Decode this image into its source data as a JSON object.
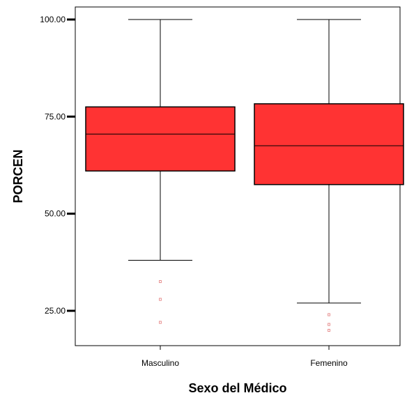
{
  "chart_data": {
    "type": "boxplot",
    "xlabel": "Sexo del Médico",
    "ylabel": "PORCEN",
    "ylim": [
      15,
      102
    ],
    "yticks": [
      {
        "value": 25,
        "label": "25.00"
      },
      {
        "value": 50,
        "label": "50.00"
      },
      {
        "value": 75,
        "label": "75.00"
      },
      {
        "value": 100,
        "label": "100.00"
      }
    ],
    "categories": [
      "Masculino",
      "Femenino"
    ],
    "boxes": [
      {
        "category": "Masculino",
        "min": 38,
        "q1": 61,
        "median": 70.5,
        "q3": 77.5,
        "max": 100,
        "outliers": [
          32.5,
          28,
          22
        ]
      },
      {
        "category": "Femenino",
        "min": 27,
        "q1": 57.5,
        "median": 67.5,
        "q3": 78.3,
        "max": 100,
        "outliers": [
          24,
          21.5,
          20
        ]
      }
    ],
    "outlier_marker": "¤",
    "box_color": "#ff3333",
    "outlier_color": "#e07070",
    "grid": false,
    "legend": "none"
  }
}
